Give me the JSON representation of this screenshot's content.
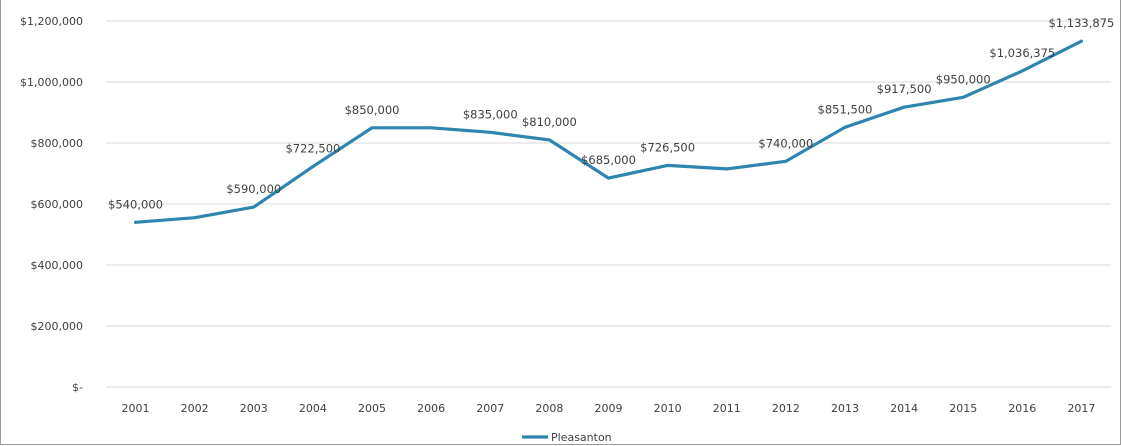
{
  "chart_data": {
    "type": "line",
    "title": "",
    "xlabel": "",
    "ylabel": "",
    "x": [
      "2001",
      "2002",
      "2003",
      "2004",
      "2005",
      "2006",
      "2007",
      "2008",
      "2009",
      "2010",
      "2011",
      "2012",
      "2013",
      "2014",
      "2015",
      "2016",
      "2017"
    ],
    "series": [
      {
        "name": "Pleasanton",
        "color": "#2e86b0",
        "values": [
          540000,
          555000,
          590000,
          722500,
          850000,
          850000,
          835000,
          810000,
          685000,
          726500,
          715000,
          740000,
          851500,
          917500,
          950000,
          1036375,
          1133875
        ]
      }
    ],
    "data_labels": [
      {
        "index": 0,
        "text": "$540,000"
      },
      {
        "index": 2,
        "text": "$590,000"
      },
      {
        "index": 3,
        "text": "$722,500"
      },
      {
        "index": 4,
        "text": "$850,000"
      },
      {
        "index": 6,
        "text": "$835,000"
      },
      {
        "index": 7,
        "text": "$810,000"
      },
      {
        "index": 8,
        "text": "$685,000"
      },
      {
        "index": 9,
        "text": "$726,500"
      },
      {
        "index": 11,
        "text": "$740,000"
      },
      {
        "index": 12,
        "text": "$851,500"
      },
      {
        "index": 13,
        "text": "$917,500"
      },
      {
        "index": 14,
        "text": "$950,000"
      },
      {
        "index": 15,
        "text": "$1,036,375"
      },
      {
        "index": 16,
        "text": "$1,133,875"
      }
    ],
    "ylim": [
      0,
      1200000
    ],
    "yticks": [
      0,
      200000,
      400000,
      600000,
      800000,
      1000000,
      1200000
    ],
    "ytick_labels": [
      "$-",
      "$200,000",
      "$400,000",
      "$600,000",
      "$800,000",
      "$1,000,000",
      "$1,200,000"
    ],
    "grid": true,
    "legend_position": "bottom-center"
  }
}
